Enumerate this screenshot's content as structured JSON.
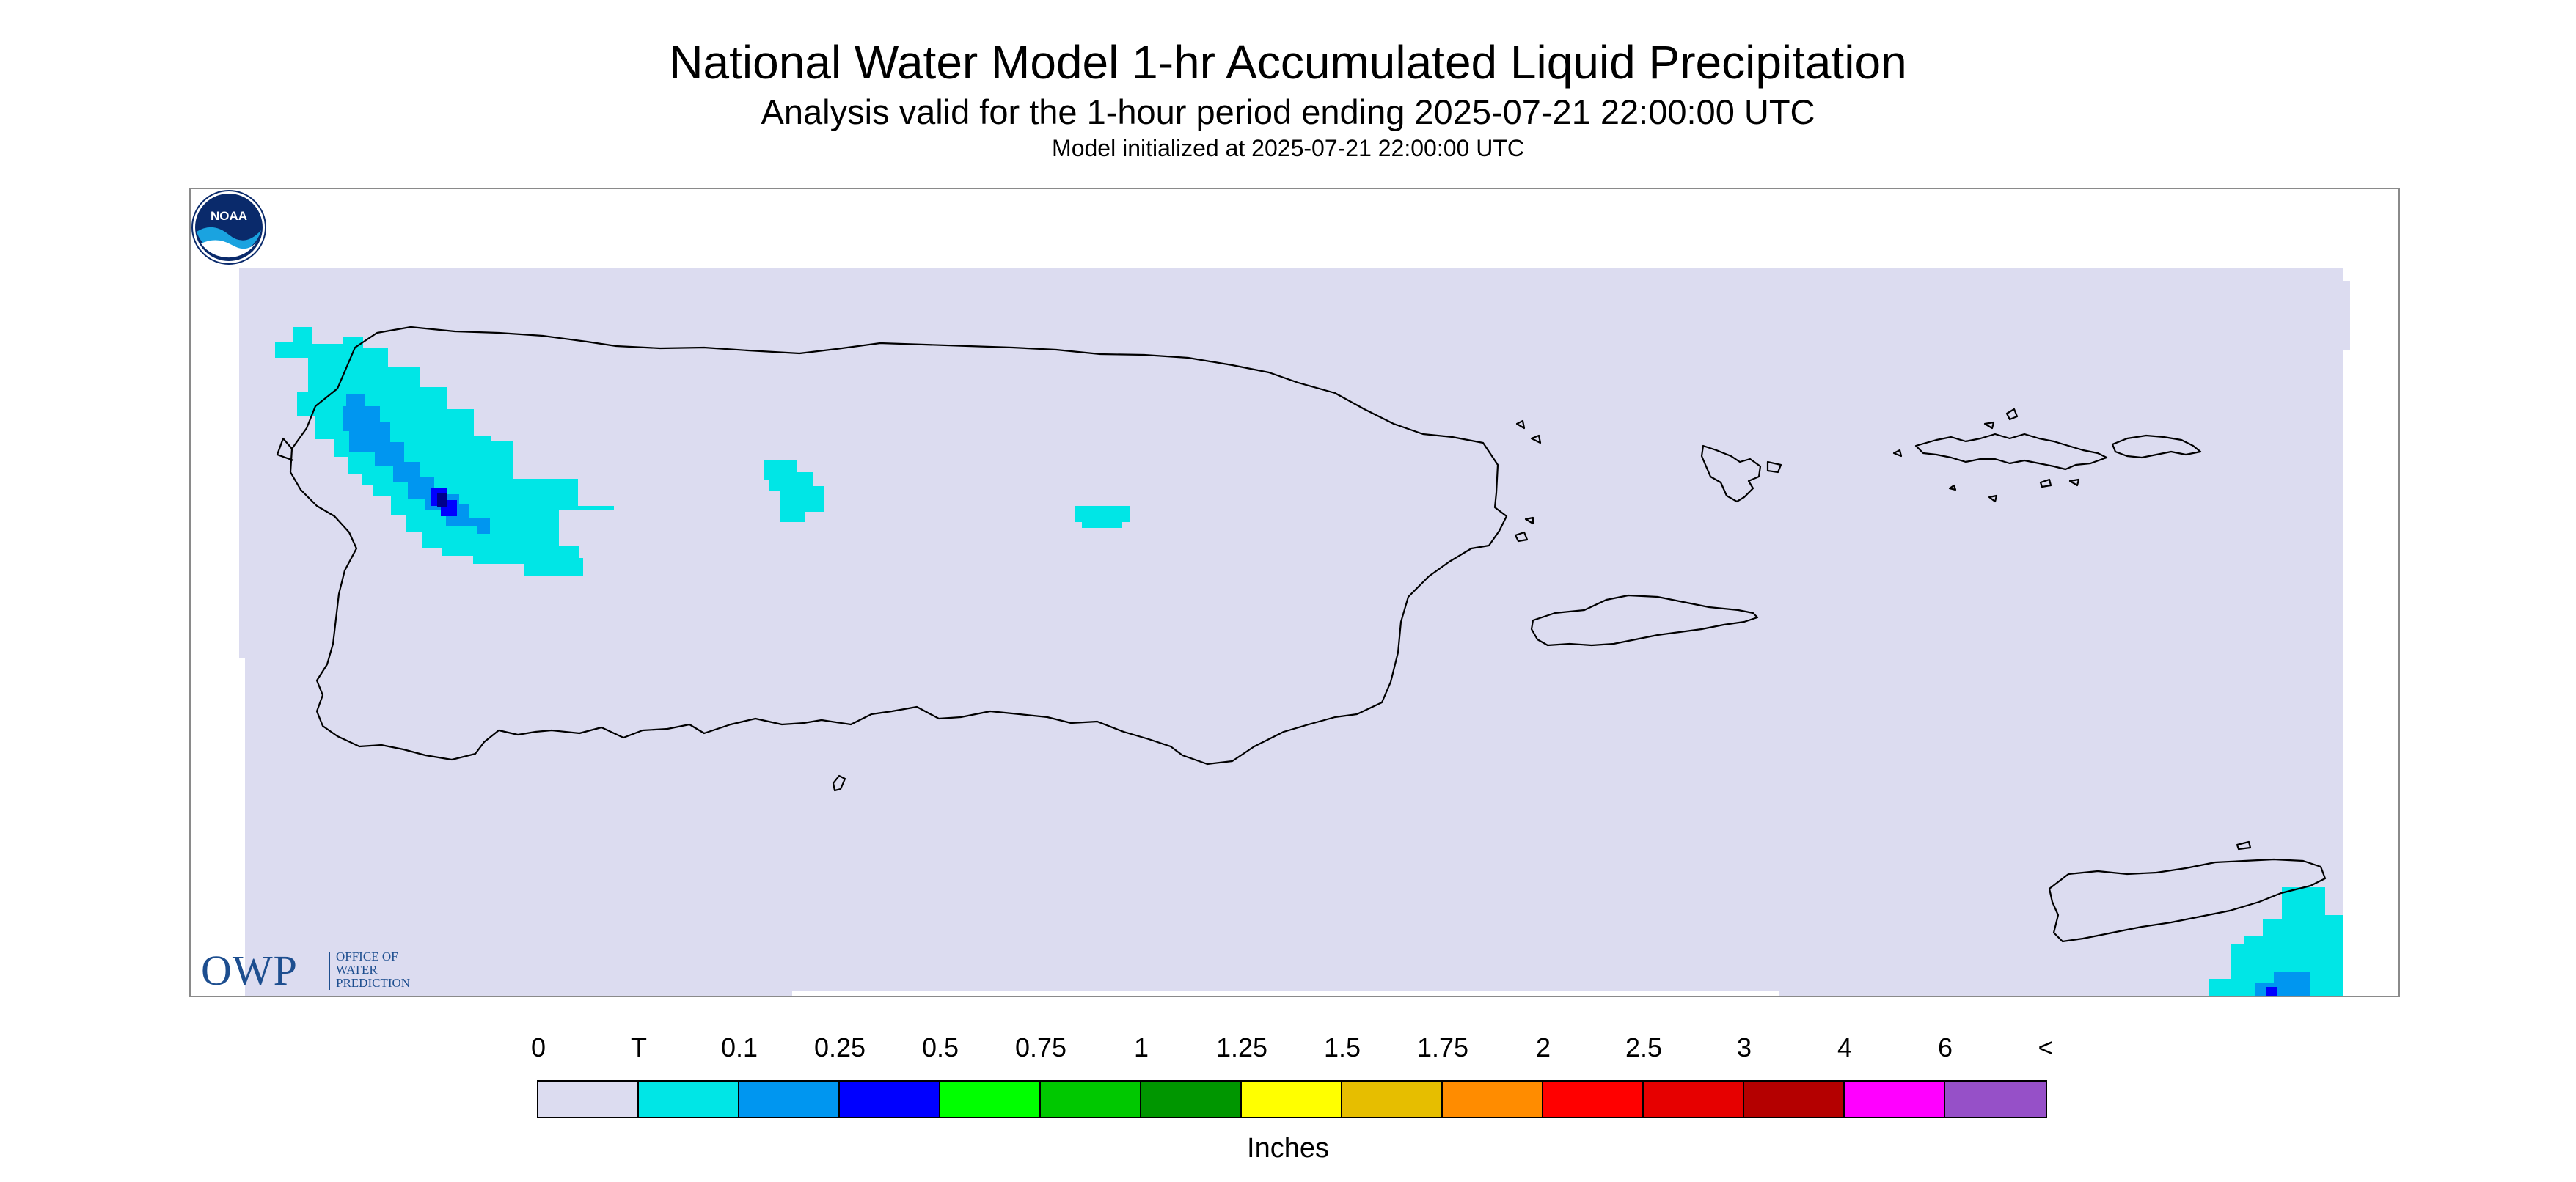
{
  "title": "National Water Model 1-hr Accumulated Liquid Precipitation",
  "subtitle": "Analysis valid for the 1-hour period ending 2025-07-21 22:00:00 UTC",
  "init_line": "Model initialized at 2025-07-21 22:00:00 UTC",
  "owp_logo": {
    "abbrev": "OWP",
    "line1": "OFFICE OF",
    "line2": "WATER",
    "line3": "PREDICTION"
  },
  "noaa_logo": {
    "text": "NOAA"
  },
  "map": {
    "background_color": "#dcdcf0",
    "coastline_color": "#000000",
    "region": "Puerto Rico and U.S. Virgin Islands"
  },
  "legend": {
    "labels": [
      "0",
      "T",
      "0.1",
      "0.25",
      "0.5",
      "0.75",
      "1",
      "1.25",
      "1.5",
      "1.75",
      "2",
      "2.5",
      "3",
      "4",
      "6",
      "<"
    ],
    "colors": [
      "#dcdcf0",
      "#00e6e6",
      "#0096f0",
      "#0000ff",
      "#00ff00",
      "#00c800",
      "#009600",
      "#ffff00",
      "#e6be00",
      "#ff8c00",
      "#ff0000",
      "#e60000",
      "#b40000",
      "#ff00ff",
      "#9650c8"
    ],
    "units": "Inches"
  }
}
